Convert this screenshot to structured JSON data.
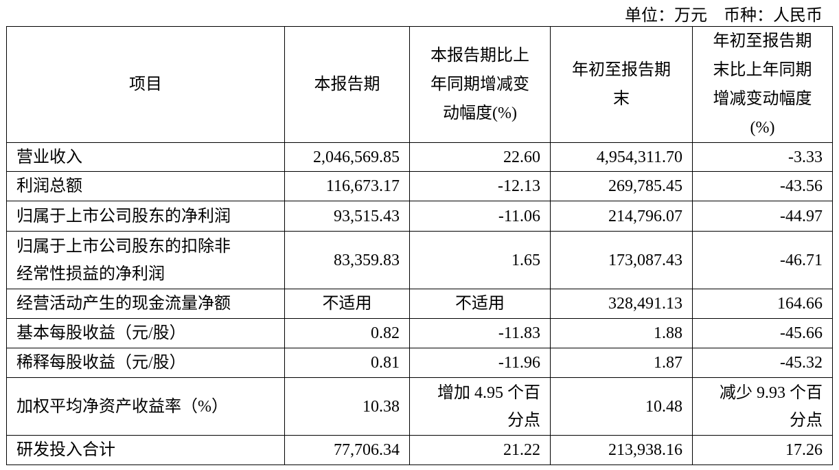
{
  "unit_line": "单位：万元    币种：人民币",
  "headers": [
    [
      "项目"
    ],
    [
      "本报告期"
    ],
    [
      "本报告期比上",
      "年同期增减变",
      "动幅度(%)"
    ],
    [
      "年初至报告期",
      "末"
    ],
    [
      "年初至报告期",
      "末比上年同期",
      "增减变动幅度",
      "(%)"
    ]
  ],
  "rows": [
    {
      "item": [
        "营业收入"
      ],
      "c1": [
        "2,046,569.85"
      ],
      "c2": [
        "22.60"
      ],
      "c3": [
        "4,954,311.70"
      ],
      "c4": [
        "-3.33"
      ]
    },
    {
      "item": [
        "利润总额"
      ],
      "c1": [
        "116,673.17"
      ],
      "c2": [
        "-12.13"
      ],
      "c3": [
        "269,785.45"
      ],
      "c4": [
        "-43.56"
      ]
    },
    {
      "item": [
        "归属于上市公司股东的净利润"
      ],
      "c1": [
        "93,515.43"
      ],
      "c2": [
        "-11.06"
      ],
      "c3": [
        "214,796.07"
      ],
      "c4": [
        "-44.97"
      ]
    },
    {
      "item": [
        "归属于上市公司股东的扣除非",
        "经常性损益的净利润"
      ],
      "c1": [
        "83,359.83"
      ],
      "c2": [
        "1.65"
      ],
      "c3": [
        "173,087.43"
      ],
      "c4": [
        "-46.71"
      ]
    },
    {
      "item": [
        "经营活动产生的现金流量净额"
      ],
      "c1": [
        "不适用"
      ],
      "c2": [
        "不适用"
      ],
      "c3": [
        "328,491.13"
      ],
      "c4": [
        "164.66"
      ]
    },
    {
      "item": [
        "基本每股收益（元/股）"
      ],
      "c1": [
        "0.82"
      ],
      "c2": [
        "-11.83"
      ],
      "c3": [
        "1.88"
      ],
      "c4": [
        "-45.66"
      ]
    },
    {
      "item": [
        "稀释每股收益（元/股）"
      ],
      "c1": [
        "0.81"
      ],
      "c2": [
        "-11.96"
      ],
      "c3": [
        "1.87"
      ],
      "c4": [
        "-45.32"
      ]
    },
    {
      "item": [
        "加权平均净资产收益率（%）"
      ],
      "c1": [
        "10.38"
      ],
      "c2": [
        "增加 4.95 个百",
        "分点"
      ],
      "c3": [
        "10.48"
      ],
      "c4": [
        "减少 9.93 个百",
        "分点"
      ]
    },
    {
      "item": [
        "研发投入合计"
      ],
      "c1": [
        "77,706.34"
      ],
      "c2": [
        "21.22"
      ],
      "c3": [
        "213,938.16"
      ],
      "c4": [
        "17.26"
      ]
    }
  ]
}
